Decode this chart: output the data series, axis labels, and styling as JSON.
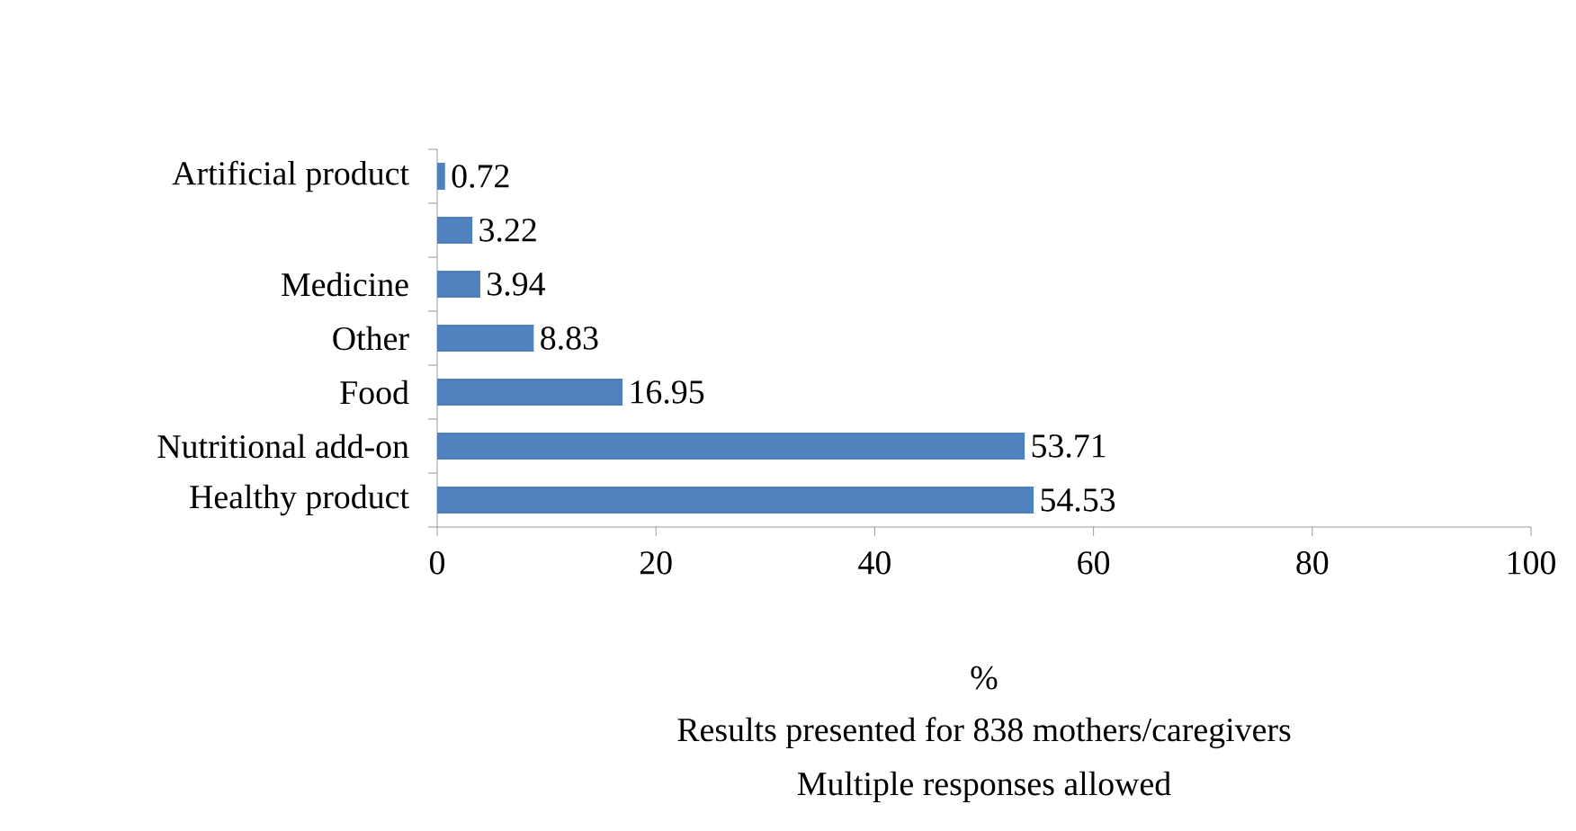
{
  "chart_data": {
    "type": "bar",
    "orientation": "horizontal",
    "categories": [
      "Artificial product",
      null,
      "Medicine",
      "Other",
      "Food",
      "Nutritional add-on",
      "Healthy product"
    ],
    "values": [
      0.72,
      3.22,
      3.94,
      8.83,
      16.95,
      53.71,
      54.53
    ],
    "color": "#4f81bd",
    "data_labels": true,
    "grid": false,
    "xlim": [
      0,
      100
    ],
    "xticks": [
      0,
      20,
      40,
      60,
      80,
      100
    ],
    "xlabel": "%",
    "annotations": [
      "Results presented for 838 mothers/caregivers",
      "Multiple responses allowed"
    ]
  }
}
